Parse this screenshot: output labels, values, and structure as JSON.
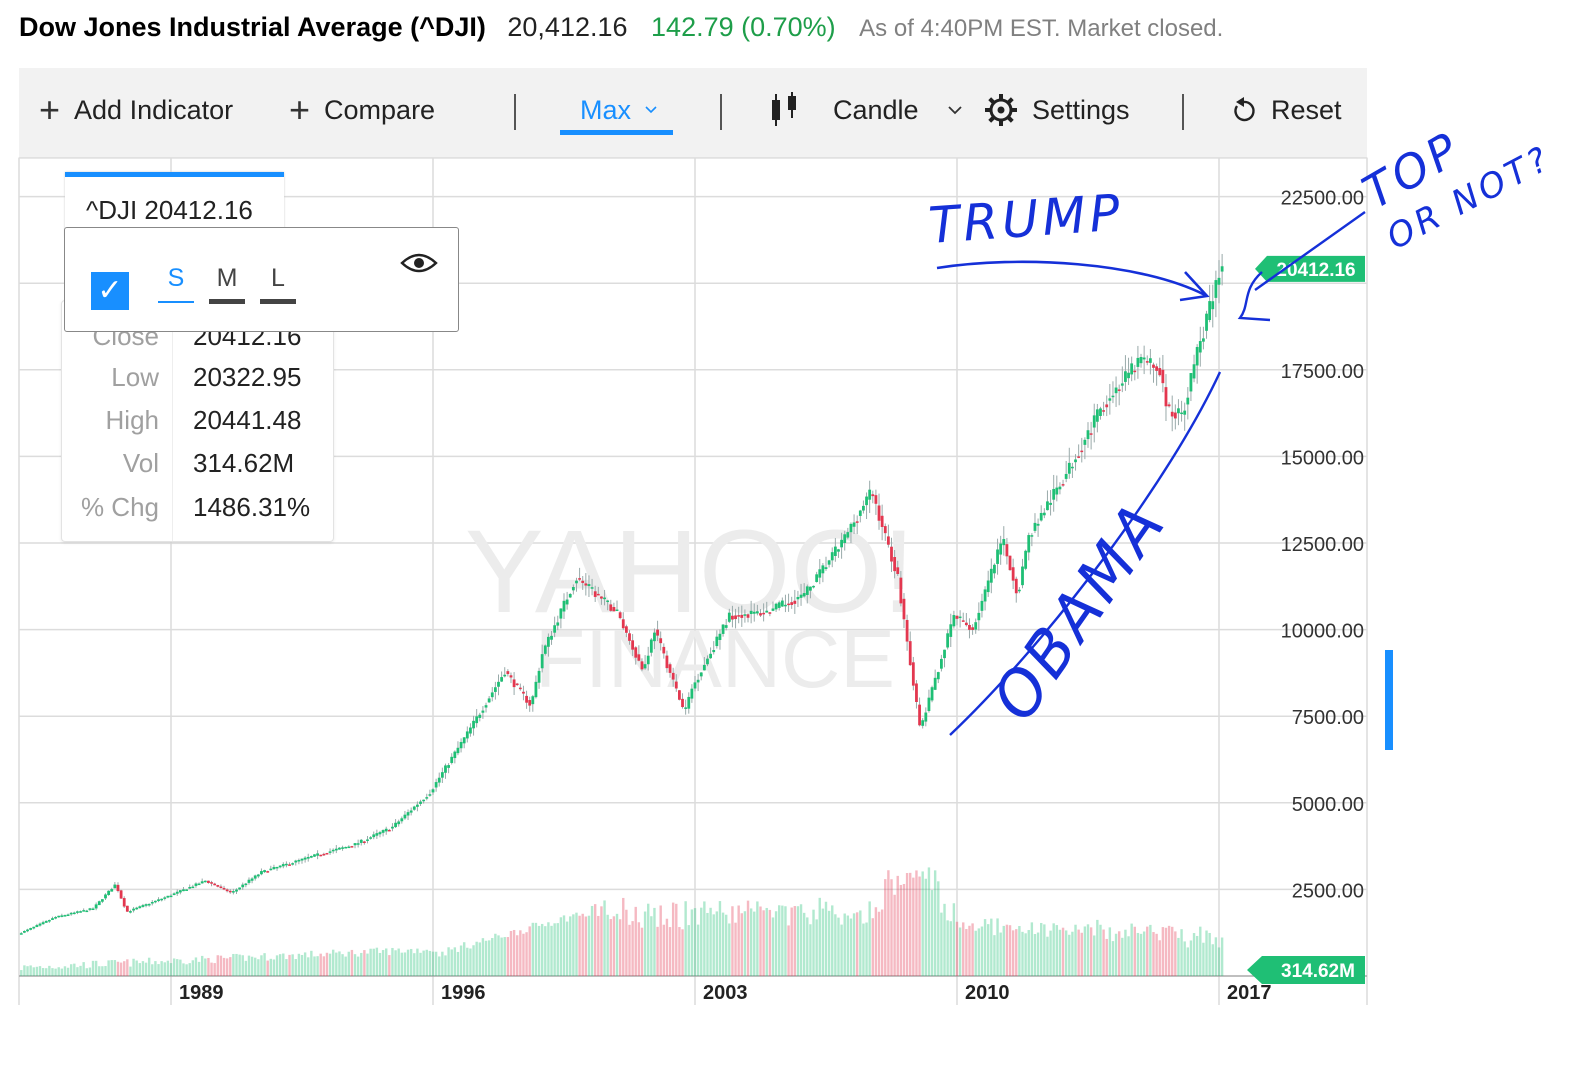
{
  "header": {
    "name": "Dow Jones Industrial Average (^DJI)",
    "price": "20,412.16",
    "change": "142.79 (0.70%)",
    "as_of": "As of 4:40PM EST. Market closed."
  },
  "toolbar": {
    "add_indicator": "Add Indicator",
    "compare": "Compare",
    "range": "Max",
    "chart_type": "Candle",
    "settings": "Settings",
    "reset": "Reset"
  },
  "legend": {
    "symbol": "^DJI 20412.16",
    "rows": [
      {
        "label": "Close",
        "value": "20412.16"
      },
      {
        "label": "Low",
        "value": "20322.95"
      },
      {
        "label": "High",
        "value": "20441.48"
      },
      {
        "label": "Vol",
        "value": "314.62M"
      },
      {
        "label": "% Chg",
        "value": "1486.31%"
      }
    ]
  },
  "popup": {
    "sizes": [
      "S",
      "M",
      "L"
    ],
    "checked": true
  },
  "watermark": {
    "line1": "YAHOO!",
    "line2": "FINANCE"
  },
  "annotations": {
    "trump": "TRUMP",
    "top": "TOP",
    "or_not": "OR NOT?",
    "obama": "OBAMA"
  },
  "colors": {
    "up": "#1fbf75",
    "down": "#e3374f",
    "accent": "#188fff",
    "ink": "#1530d8"
  },
  "chart_data": {
    "type": "candlestick",
    "y_ticks": [
      22500,
      17500,
      15000,
      12500,
      10000,
      7500,
      5000,
      2500
    ],
    "y_tick_labels": [
      "22500.00",
      "17500.00",
      "15000.00",
      "12500.00",
      "10000.00",
      "7500.00",
      "5000.00",
      "2500.00"
    ],
    "ylim": [
      0,
      23000
    ],
    "x_ticks": [
      1989,
      1996,
      2003,
      2010,
      2017
    ],
    "x_tick_labels": [
      "1989",
      "1996",
      "2003",
      "2010",
      "2017"
    ],
    "xlim": [
      1985,
      2017.5
    ],
    "last_price_label": "20412.16",
    "last_volume_label": "314.62M",
    "price_series": [
      [
        1985.0,
        1210
      ],
      [
        1986.0,
        1700
      ],
      [
        1987.0,
        1950
      ],
      [
        1987.6,
        2650
      ],
      [
        1987.9,
        1850
      ],
      [
        1989.0,
        2300
      ],
      [
        1990.0,
        2750
      ],
      [
        1990.7,
        2400
      ],
      [
        1991.5,
        3000
      ],
      [
        1993.0,
        3500
      ],
      [
        1994.0,
        3800
      ],
      [
        1995.0,
        4300
      ],
      [
        1996.0,
        5300
      ],
      [
        1997.0,
        7000
      ],
      [
        1998.0,
        8800
      ],
      [
        1998.7,
        7800
      ],
      [
        1999.0,
        9300
      ],
      [
        1999.9,
        11500
      ],
      [
        2001.0,
        10500
      ],
      [
        2001.7,
        8800
      ],
      [
        2002.0,
        10000
      ],
      [
        2002.8,
        7600
      ],
      [
        2003.0,
        8300
      ],
      [
        2004.0,
        10400
      ],
      [
        2005.0,
        10500
      ],
      [
        2006.0,
        11000
      ],
      [
        2007.0,
        12500
      ],
      [
        2007.8,
        14000
      ],
      [
        2008.5,
        11500
      ],
      [
        2009.1,
        7100
      ],
      [
        2010.0,
        10400
      ],
      [
        2010.5,
        10000
      ],
      [
        2011.3,
        12600
      ],
      [
        2011.7,
        11000
      ],
      [
        2012.0,
        12700
      ],
      [
        2013.0,
        14500
      ],
      [
        2014.0,
        16500
      ],
      [
        2015.0,
        17800
      ],
      [
        2015.5,
        17500
      ],
      [
        2015.7,
        16300
      ],
      [
        2016.1,
        16200
      ],
      [
        2016.5,
        18000
      ],
      [
        2016.9,
        19500
      ],
      [
        2017.1,
        20412
      ]
    ]
  }
}
